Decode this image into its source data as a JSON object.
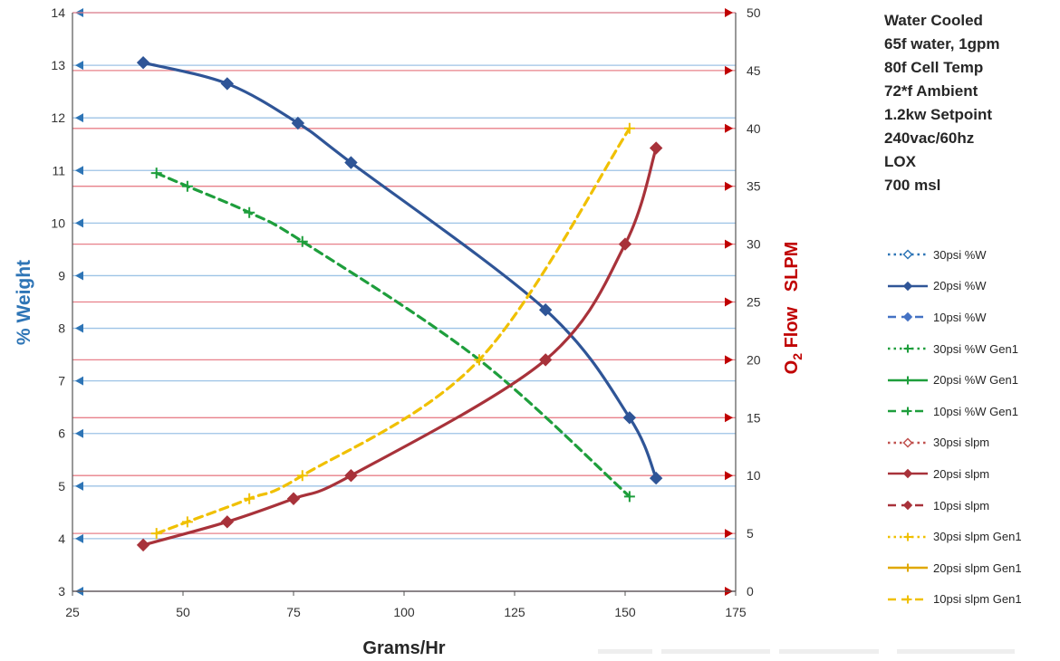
{
  "chart_data": {
    "type": "line",
    "x": {
      "label": "Grams/Hr",
      "lim": [
        25,
        175
      ],
      "ticks": [
        25,
        50,
        75,
        100,
        125,
        150,
        175
      ]
    },
    "y_left": {
      "label": "% Weight",
      "lim": [
        3,
        14
      ],
      "ticks": [
        3,
        4,
        5,
        6,
        7,
        8,
        9,
        10,
        11,
        12,
        13,
        14
      ]
    },
    "y_right": {
      "label_main": "O",
      "label_sub": "2",
      "label_rest": " Flow   SLPM",
      "lim": [
        0,
        50
      ],
      "ticks": [
        0,
        5,
        10,
        15,
        20,
        25,
        30,
        35,
        40,
        45,
        50
      ]
    },
    "grid": true,
    "colors": {
      "left_axis": "#2e75b6",
      "right_axis": "#c00000",
      "left_grid": "#9dc3e6",
      "right_grid": "#e8808a"
    },
    "notes": [
      "Water Cooled",
      "65f water, 1gpm",
      "80f Cell Temp",
      "72*f Ambient",
      "1.2kw Setpoint",
      "240vac/60hz",
      "LOX",
      "700 msl"
    ],
    "series": [
      {
        "name": "30psi %W",
        "axis": "left",
        "color": "#2e75b6",
        "dash": "dotted",
        "marker": "diamond-open",
        "x": [],
        "y": []
      },
      {
        "name": "20psi %W",
        "axis": "left",
        "color": "#2f5597",
        "dash": "solid",
        "marker": "diamond",
        "x": [
          41,
          60,
          76,
          88,
          132,
          151,
          157
        ],
        "y": [
          13.05,
          12.65,
          11.9,
          11.15,
          8.35,
          6.3,
          5.15
        ]
      },
      {
        "name": "10psi %W",
        "axis": "left",
        "color": "#4472c4",
        "dash": "dashed",
        "marker": "diamond",
        "x": [],
        "y": []
      },
      {
        "name": "30psi %W Gen1",
        "axis": "left",
        "color": "#1e9e3c",
        "dash": "dotted",
        "marker": "plus",
        "x": [],
        "y": []
      },
      {
        "name": "20psi %W Gen1",
        "axis": "left",
        "color": "#1e9e3c",
        "dash": "solid",
        "marker": "plus",
        "x": [],
        "y": []
      },
      {
        "name": "10psi %W Gen1",
        "axis": "left",
        "color": "#1e9e3c",
        "dash": "dashed",
        "marker": "plus",
        "x": [
          44,
          51,
          65,
          77,
          117,
          151
        ],
        "y": [
          10.95,
          10.7,
          10.2,
          9.65,
          7.4,
          4.8
        ]
      },
      {
        "name": "30psi slpm",
        "axis": "right",
        "color": "#c0504d",
        "dash": "dotted",
        "marker": "diamond-open",
        "x": [],
        "y": []
      },
      {
        "name": "20psi slpm",
        "axis": "right",
        "color": "#a8323a",
        "dash": "solid",
        "marker": "diamond",
        "x": [
          41,
          60,
          75,
          88,
          132,
          150,
          157
        ],
        "y": [
          4,
          6,
          8,
          10,
          20,
          30,
          38.3
        ]
      },
      {
        "name": "10psi slpm",
        "axis": "right",
        "color": "#a8323a",
        "dash": "dashed",
        "marker": "diamond",
        "x": [],
        "y": []
      },
      {
        "name": "30psi slpm Gen1",
        "axis": "right",
        "color": "#f0c000",
        "dash": "dotted",
        "marker": "plus",
        "x": [],
        "y": []
      },
      {
        "name": "20psi slpm Gen1",
        "axis": "right",
        "color": "#e0a800",
        "dash": "solid",
        "marker": "plus",
        "x": [],
        "y": []
      },
      {
        "name": "10psi slpm Gen1",
        "axis": "right",
        "color": "#f0c000",
        "dash": "dashed",
        "marker": "plus",
        "x": [
          44,
          51,
          65,
          77,
          117,
          151
        ],
        "y": [
          5,
          6,
          8,
          10,
          20,
          40
        ]
      }
    ]
  }
}
